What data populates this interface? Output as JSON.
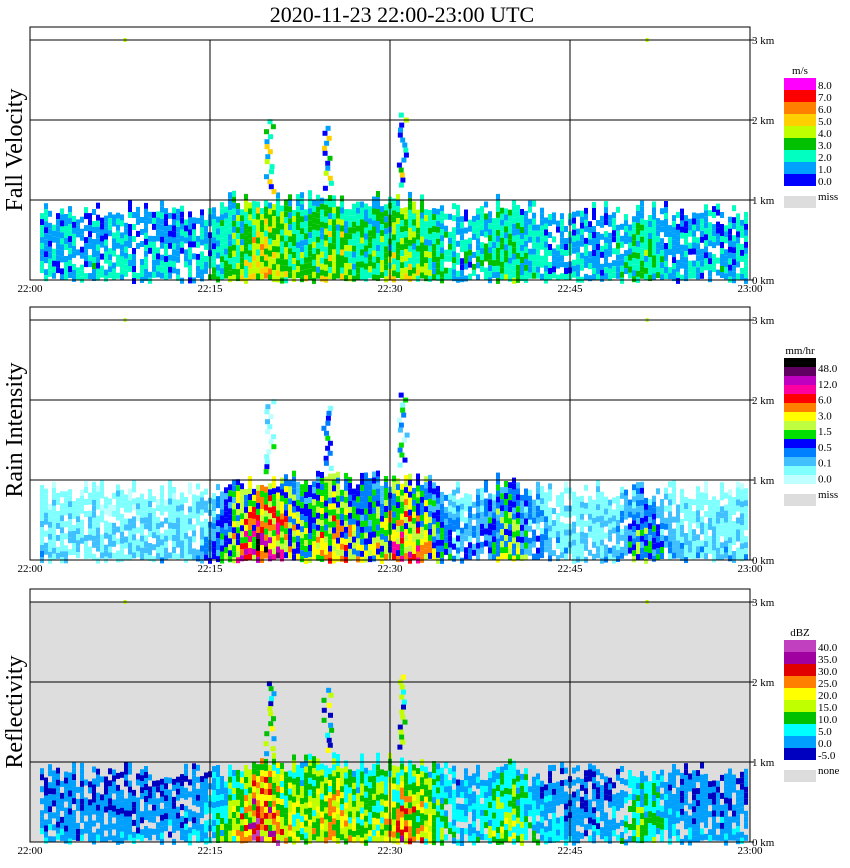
{
  "title": "2020-11-23   22:00-23:00 UTC",
  "chart_data": [
    {
      "type": "heatmap",
      "ylabel": "Fall Velocity",
      "xlim": [
        "22:00",
        "23:00"
      ],
      "x_tick_labels": [
        "22:00",
        "22:15",
        "22:30",
        "22:45",
        "23:00"
      ],
      "ylim_km": [
        0,
        3
      ],
      "y_tick_labels": [
        "3 km",
        "2 km",
        "1 km",
        "0 km"
      ],
      "grid": true,
      "background": "#ffffff",
      "colorbar": {
        "unit": "m/s",
        "labels": [
          "8.0",
          "7.0",
          "6.0",
          "5.0",
          "4.0",
          "3.0",
          "2.0",
          "1.0",
          "0.0"
        ],
        "colors": [
          "#ff00ff",
          "#ff0000",
          "#ff7f00",
          "#ffd000",
          "#c0ff00",
          "#00c000",
          "#00ffc0",
          "#00a0ff",
          "#0000ff"
        ],
        "missing_label": "miss",
        "missing_color": "#dddddd"
      }
    },
    {
      "type": "heatmap",
      "ylabel": "Rain Intensity",
      "xlim": [
        "22:00",
        "23:00"
      ],
      "x_tick_labels": [
        "22:00",
        "22:15",
        "22:30",
        "22:45",
        "23:00"
      ],
      "ylim_km": [
        0,
        3
      ],
      "y_tick_labels": [
        "3 km",
        "2 km",
        "1 km",
        "0 km"
      ],
      "grid": true,
      "background": "#ffffff",
      "colorbar": {
        "unit": "mm/hr",
        "labels": [
          "48.0",
          "12.0",
          "6.0",
          "3.0",
          "1.5",
          "0.5",
          "0.1",
          "0.0"
        ],
        "colors": [
          "#000000",
          "#600060",
          "#c000c0",
          "#ff00a0",
          "#ff0000",
          "#ff8000",
          "#ffff00",
          "#c0ff40",
          "#00e000",
          "#0000ff",
          "#0080ff",
          "#40c0ff",
          "#80ffff",
          "#c0ffff"
        ],
        "missing_label": "miss",
        "missing_color": "#dddddd"
      }
    },
    {
      "type": "heatmap",
      "ylabel": "Reflectivity",
      "xlim": [
        "22:00",
        "23:00"
      ],
      "x_tick_labels": [
        "22:00",
        "22:15",
        "22:30",
        "22:45",
        "23:00"
      ],
      "ylim_km": [
        0,
        3
      ],
      "y_tick_labels": [
        "3 km",
        "2 km",
        "1 km",
        "0 km"
      ],
      "grid": true,
      "background": "#dddddd",
      "colorbar": {
        "unit": "dBZ",
        "labels": [
          "40.0",
          "35.0",
          "30.0",
          "25.0",
          "20.0",
          "15.0",
          "10.0",
          "5.0",
          "0.0",
          "-5.0"
        ],
        "colors": [
          "#c040c0",
          "#a000a0",
          "#e00000",
          "#ff8000",
          "#ffff00",
          "#c0ff00",
          "#00c000",
          "#00ffff",
          "#00a0ff",
          "#0000c0"
        ],
        "missing_label": "none",
        "missing_color": "#dddddd"
      }
    }
  ]
}
